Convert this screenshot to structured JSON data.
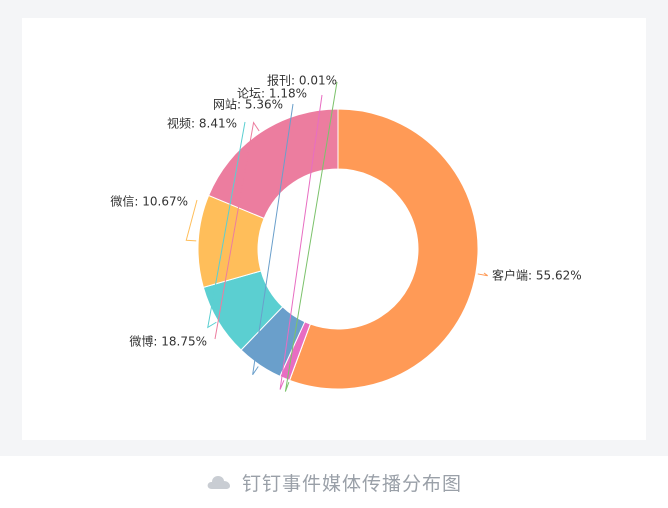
{
  "chart_data": {
    "type": "pie",
    "donut": true,
    "labels": [
      "客户端",
      "报刊",
      "论坛",
      "网站",
      "视频",
      "微信",
      "微博"
    ],
    "values": [
      55.62,
      0.01,
      1.18,
      5.36,
      8.41,
      10.67,
      18.75
    ],
    "display_labels": [
      "客户端: 55.62%",
      "报刊: 0.01%",
      "论坛: 1.18%",
      "网站: 5.36%",
      "视频: 8.41%",
      "微信: 10.67%",
      "微博: 18.75%"
    ],
    "colors": [
      "#FF9A56",
      "#7CC26B",
      "#E86DC2",
      "#6A9FCB",
      "#5BCFD1",
      "#FFBE5A",
      "#EC7D9F"
    ],
    "unit": "%",
    "legend": "none"
  },
  "caption": {
    "icon": "cloud-icon",
    "text": "钉钉事件媒体传播分布图"
  }
}
